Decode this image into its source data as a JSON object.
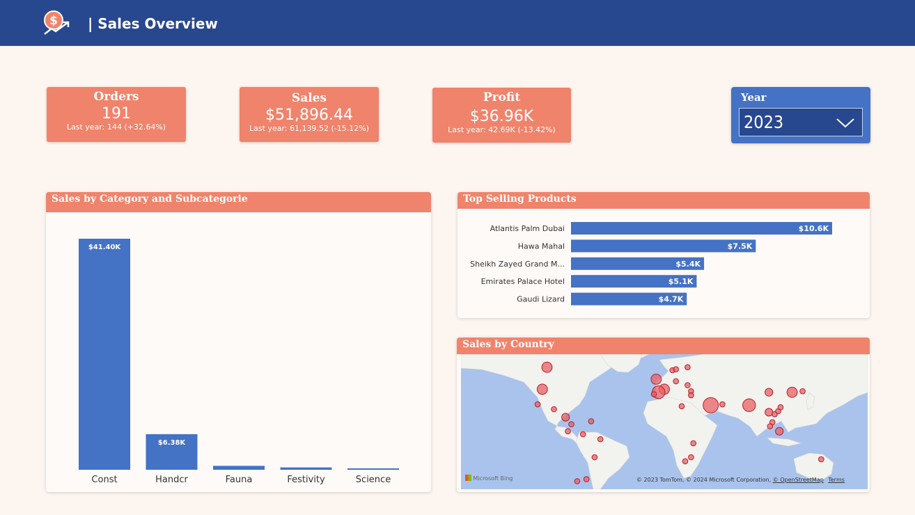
{
  "header": {
    "title": "| Sales Overview",
    "logo_icon": "dollar-growth-icon",
    "background": "#27478e"
  },
  "kpis": {
    "orders": {
      "title": "Orders",
      "value": "191",
      "sub": "Last year: 144 (+32.64%)"
    },
    "sales": {
      "title": "Sales",
      "value": "$51,896.44",
      "sub": "Last year: 61,139.52 (-15.12%)"
    },
    "profit": {
      "title": "Profit",
      "value": "$36.96K",
      "sub": "Last year: 42.69K (-13.42%)"
    }
  },
  "year_filter": {
    "label": "Year",
    "value": "2023",
    "icon": "chevron-down-icon"
  },
  "category_panel": {
    "title": "Sales by Category and Subcategorie"
  },
  "top_products_panel": {
    "title": "Top Selling Products"
  },
  "country_panel": {
    "title": "Sales by Country",
    "attribution": "© 2023 TomTom, © 2024 Microsoft Corporation,",
    "osm_link": "© OpenStreetMap",
    "terms_link": "Terms",
    "brand": "Microsoft Bing"
  },
  "colors": {
    "accent": "#f0836b",
    "bar": "#4472c4",
    "navy": "#27478e",
    "background": "#fdf5ef"
  },
  "chart_data": [
    {
      "type": "bar",
      "categories": [
        "Const",
        "Handcr",
        "Fauna",
        "Festivity",
        "Science"
      ],
      "values": [
        41400,
        6380,
        700,
        420,
        200
      ],
      "labels": [
        "$41.40K",
        "$6.38K",
        "",
        "",
        ""
      ],
      "title": "Sales by Category and Subcategorie",
      "ylim": [
        0,
        41400
      ]
    },
    {
      "type": "bar",
      "orientation": "horizontal",
      "categories": [
        "Atlantis Palm Dubai",
        "Hawa Mahal",
        "Sheikh Zayed Grand M...",
        "Emirates Palace Hotel",
        "Gaudi Lizard"
      ],
      "values": [
        10600,
        7500,
        5400,
        5100,
        4700
      ],
      "labels": [
        "$10.6K",
        "$7.5K",
        "$5.4K",
        "$5.1K",
        "$4.7K"
      ],
      "title": "Top Selling Products",
      "xlim": [
        0,
        10600
      ]
    }
  ],
  "map_points": [
    {
      "lon": -96,
      "lat": 62,
      "size": 3
    },
    {
      "lon": -100,
      "lat": 40,
      "size": 3
    },
    {
      "lon": -104,
      "lat": 25,
      "size": 1
    },
    {
      "lon": -90,
      "lat": 20,
      "size": 1
    },
    {
      "lon": -80,
      "lat": 12,
      "size": 2
    },
    {
      "lon": -75,
      "lat": 5,
      "size": 1
    },
    {
      "lon": -78,
      "lat": -2,
      "size": 1
    },
    {
      "lon": -58,
      "lat": 8,
      "size": 1
    },
    {
      "lon": -65,
      "lat": -5,
      "size": 1
    },
    {
      "lon": -50,
      "lat": -10,
      "size": 1
    },
    {
      "lon": -55,
      "lat": -28,
      "size": 1
    },
    {
      "lon": -70,
      "lat": -52,
      "size": 1
    },
    {
      "lon": -62,
      "lat": -50,
      "size": 1
    },
    {
      "lon": -2,
      "lat": 50,
      "size": 3
    },
    {
      "lon": 5,
      "lat": 40,
      "size": 3
    },
    {
      "lon": 0,
      "lat": 37,
      "size": 4
    },
    {
      "lon": -4,
      "lat": 35,
      "size": 1
    },
    {
      "lon": 12,
      "lat": 59,
      "size": 1
    },
    {
      "lon": 15,
      "lat": 60,
      "size": 1
    },
    {
      "lon": 25,
      "lat": 62,
      "size": 1
    },
    {
      "lon": 15,
      "lat": 48,
      "size": 1
    },
    {
      "lon": 25,
      "lat": 44,
      "size": 1
    },
    {
      "lon": 28,
      "lat": 38,
      "size": 1
    },
    {
      "lon": 28,
      "lat": 34,
      "size": 1
    },
    {
      "lon": 20,
      "lat": 23,
      "size": 1
    },
    {
      "lon": 45,
      "lat": 24,
      "size": 5
    },
    {
      "lon": 55,
      "lat": 25,
      "size": 1
    },
    {
      "lon": 78,
      "lat": 24,
      "size": 4
    },
    {
      "lon": 95,
      "lat": 17,
      "size": 2
    },
    {
      "lon": 100,
      "lat": 15,
      "size": 1
    },
    {
      "lon": 98,
      "lat": 7,
      "size": 1
    },
    {
      "lon": 96,
      "lat": 3,
      "size": 1
    },
    {
      "lon": 104,
      "lat": -2,
      "size": 2
    },
    {
      "lon": 95,
      "lat": 37,
      "size": 2
    },
    {
      "lon": 115,
      "lat": 37,
      "size": 3
    },
    {
      "lon": 124,
      "lat": 38,
      "size": 1
    },
    {
      "lon": 103,
      "lat": 18,
      "size": 1
    },
    {
      "lon": 105,
      "lat": 22,
      "size": 1
    },
    {
      "lon": 30,
      "lat": -14,
      "size": 1
    },
    {
      "lon": 28,
      "lat": -28,
      "size": 1
    },
    {
      "lon": 23,
      "lat": -32,
      "size": 1
    },
    {
      "lon": 140,
      "lat": -30,
      "size": 1
    }
  ]
}
